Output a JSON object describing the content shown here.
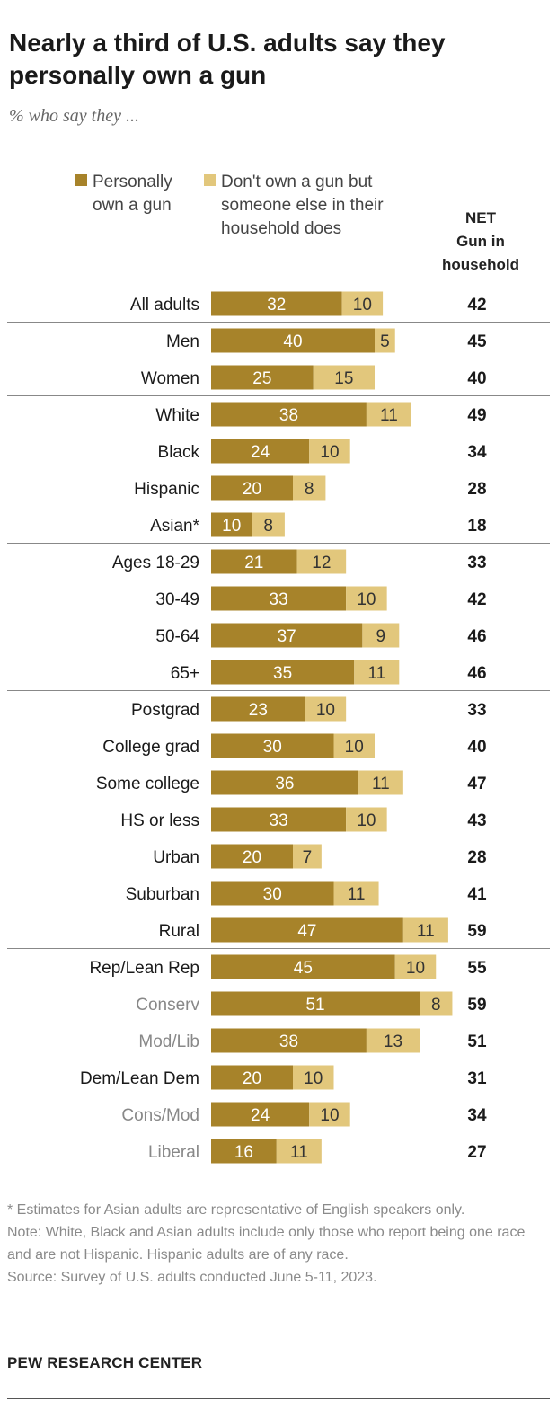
{
  "header": {
    "title": "Nearly a third of U.S. adults say they personally own a gun",
    "subtitle": "% who say they ..."
  },
  "legend": {
    "personal_label": "Personally\nown a gun",
    "household_label": "Don't own a gun but\nsomeone else in their\nhousehold does",
    "net_label": "NET\nGun in\nhousehold"
  },
  "colors": {
    "personal": "#a7832a",
    "household": "#e2c77c",
    "label": "#1a1a1a",
    "sublabel": "#888888",
    "divider": "#888888"
  },
  "chart_data": {
    "type": "bar",
    "orientation": "horizontal",
    "stacked": true,
    "title": "Nearly a third of U.S. adults say they personally own a gun",
    "subtitle": "% who say they ...",
    "categories": [
      "All adults",
      "Men",
      "Women",
      "White",
      "Black",
      "Hispanic",
      "Asian*",
      "Ages 18-29",
      "30-49",
      "50-64",
      "65+",
      "Postgrad",
      "College grad",
      "Some college",
      "HS or less",
      "Urban",
      "Suburban",
      "Rural",
      "Rep/Lean Rep",
      "Conserv",
      "Mod/Lib",
      "Dem/Lean Dem",
      "Cons/Mod",
      "Liberal"
    ],
    "subcategories": [
      false,
      false,
      false,
      false,
      false,
      false,
      false,
      false,
      false,
      false,
      false,
      false,
      false,
      false,
      false,
      false,
      false,
      false,
      false,
      true,
      true,
      false,
      true,
      true
    ],
    "groups_end_after": [
      0,
      2,
      6,
      10,
      14,
      17,
      20
    ],
    "series": [
      {
        "name": "Personally own a gun",
        "values": [
          32,
          40,
          25,
          38,
          24,
          20,
          10,
          21,
          33,
          37,
          35,
          23,
          30,
          36,
          33,
          20,
          30,
          47,
          45,
          51,
          38,
          20,
          24,
          16
        ]
      },
      {
        "name": "Don't own a gun but someone else in their household does",
        "values": [
          10,
          5,
          15,
          11,
          10,
          8,
          8,
          12,
          10,
          9,
          11,
          10,
          10,
          11,
          10,
          7,
          11,
          11,
          10,
          8,
          13,
          10,
          10,
          11
        ]
      }
    ],
    "net": {
      "name": "NET Gun in household",
      "values": [
        42,
        45,
        40,
        49,
        34,
        28,
        18,
        33,
        42,
        46,
        46,
        33,
        40,
        47,
        43,
        28,
        41,
        59,
        55,
        59,
        51,
        31,
        34,
        27
      ]
    }
  },
  "footnotes": {
    "asterisk": "* Estimates for Asian adults are representative of English speakers only.",
    "note": "Note: White, Black and Asian adults include only those who report being one race and are not Hispanic. Hispanic adults are of any race.",
    "source": "Source: Survey of U.S. adults conducted June 5-11, 2023."
  },
  "brand": "PEW RESEARCH CENTER"
}
